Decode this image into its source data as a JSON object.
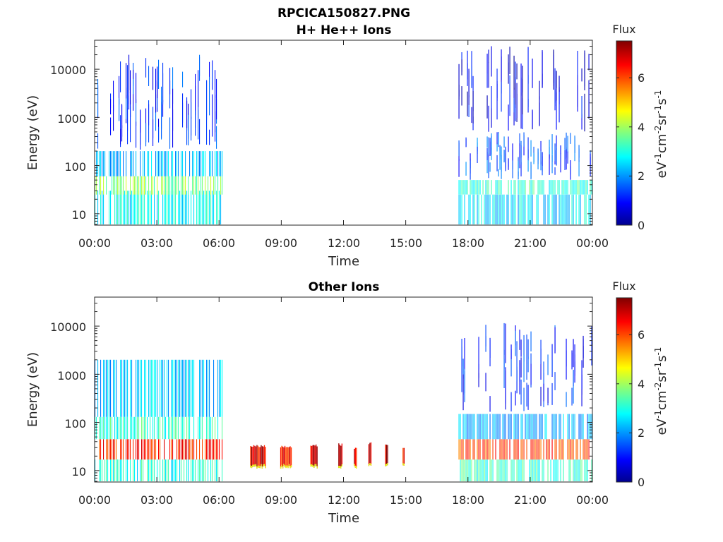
{
  "figure": {
    "title_line1": "RPCICA150827.PNG"
  },
  "chart_data": [
    {
      "type": "heatmap",
      "title": "H+ He++ Ions",
      "xlabel": "Time",
      "ylabel": "Energy (eV)",
      "x_tick_labels": [
        "00:00",
        "03:00",
        "06:00",
        "09:00",
        "12:00",
        "15:00",
        "18:00",
        "21:00",
        "00:00"
      ],
      "x_range_hours": [
        0,
        24
      ],
      "y_scale": "log",
      "y_ticks": [
        10,
        100,
        1000,
        10000
      ],
      "y_tick_labels": [
        "10",
        "100",
        "1000",
        "10000"
      ],
      "ylim": [
        5.8,
        40000
      ],
      "colorbar": {
        "title": "Flux",
        "label": "eV-1cm-2sr-1s-1",
        "ticks": [
          0,
          2,
          4,
          6
        ],
        "tick_labels": [
          "0",
          "2",
          "4",
          "6"
        ],
        "range": [
          0,
          7.5
        ],
        "colormap": "jet"
      },
      "data_intervals_hours": [
        [
          0,
          6.15
        ],
        [
          17.55,
          24
        ]
      ],
      "bands": [
        {
          "interval": [
            0,
            6.15
          ],
          "energy_range": [
            6,
            30
          ],
          "flux": 2.8
        },
        {
          "interval": [
            0,
            6.15
          ],
          "energy_range": [
            25,
            60
          ],
          "flux": 3.8
        },
        {
          "interval": [
            0,
            6.15
          ],
          "energy_range": [
            60,
            200
          ],
          "flux": 2.3
        },
        {
          "interval": [
            0,
            6.15
          ],
          "energy_range": [
            200,
            20000
          ],
          "flux": 1.3
        },
        {
          "interval": [
            17.55,
            24
          ],
          "energy_range": [
            6,
            25
          ],
          "flux": 2.6
        },
        {
          "interval": [
            17.55,
            24
          ],
          "energy_range": [
            25,
            50
          ],
          "flux": 3.2
        },
        {
          "interval": [
            17.55,
            24
          ],
          "energy_range": [
            50,
            500
          ],
          "flux": 1.5
        },
        {
          "interval": [
            17.55,
            24
          ],
          "energy_range": [
            500,
            30000
          ],
          "flux": 0.8
        }
      ]
    },
    {
      "type": "heatmap",
      "title": "Other Ions",
      "xlabel": "Time",
      "ylabel": "Energy (eV)",
      "x_tick_labels": [
        "00:00",
        "03:00",
        "06:00",
        "09:00",
        "12:00",
        "15:00",
        "18:00",
        "21:00",
        "00:00"
      ],
      "x_range_hours": [
        0,
        24
      ],
      "y_scale": "log",
      "y_ticks": [
        10,
        100,
        1000,
        10000
      ],
      "y_tick_labels": [
        "10",
        "100",
        "1000",
        "10000"
      ],
      "ylim": [
        5.8,
        40000
      ],
      "colorbar": {
        "title": "Flux",
        "label": "eV-1cm-2sr-1s-1",
        "ticks": [
          0,
          2,
          4,
          6
        ],
        "tick_labels": [
          "0",
          "2",
          "4",
          "6"
        ],
        "range": [
          0,
          7.5
        ],
        "colormap": "jet"
      },
      "data_intervals_hours": [
        [
          0,
          6.15
        ],
        [
          17.55,
          24
        ]
      ],
      "bands": [
        {
          "interval": [
            0,
            6.15
          ],
          "energy_range": [
            6,
            17
          ],
          "flux": 3.0
        },
        {
          "interval": [
            0,
            6.15
          ],
          "energy_range": [
            17,
            45
          ],
          "flux": 6.3
        },
        {
          "interval": [
            0,
            6.15
          ],
          "energy_range": [
            45,
            130
          ],
          "flux": 3.2
        },
        {
          "interval": [
            0,
            6.15
          ],
          "energy_range": [
            130,
            2000
          ],
          "flux": 2.4
        },
        {
          "interval": [
            17.55,
            24
          ],
          "energy_range": [
            6,
            17
          ],
          "flux": 3.2
        },
        {
          "interval": [
            17.55,
            24
          ],
          "energy_range": [
            17,
            45
          ],
          "flux": 6.1
        },
        {
          "interval": [
            17.55,
            24
          ],
          "energy_range": [
            45,
            150
          ],
          "flux": 2.2
        },
        {
          "interval": [
            17.55,
            24
          ],
          "energy_range": [
            150,
            12000
          ],
          "flux": 1.2
        }
      ],
      "bursts": [
        {
          "time_hours": [
            7.5,
            8.25
          ],
          "energy_range": [
            11,
            35
          ],
          "flux": 6.8
        },
        {
          "time_hours": [
            8.95,
            9.5
          ],
          "energy_range": [
            11,
            33
          ],
          "flux": 6.5
        },
        {
          "time_hours": [
            10.4,
            10.75
          ],
          "energy_range": [
            11,
            35
          ],
          "flux": 6.9
        },
        {
          "time_hours": [
            11.75,
            11.95
          ],
          "energy_range": [
            11,
            37
          ],
          "flux": 6.9
        },
        {
          "time_hours": [
            12.5,
            12.65
          ],
          "energy_range": [
            11,
            32
          ],
          "flux": 6.8
        },
        {
          "time_hours": [
            13.2,
            13.35
          ],
          "energy_range": [
            12,
            40
          ],
          "flux": 7.0
        },
        {
          "time_hours": [
            14.0,
            14.15
          ],
          "energy_range": [
            12,
            38
          ],
          "flux": 6.9
        },
        {
          "time_hours": [
            14.85,
            14.95
          ],
          "energy_range": [
            12,
            30
          ],
          "flux": 6.7
        }
      ]
    }
  ]
}
